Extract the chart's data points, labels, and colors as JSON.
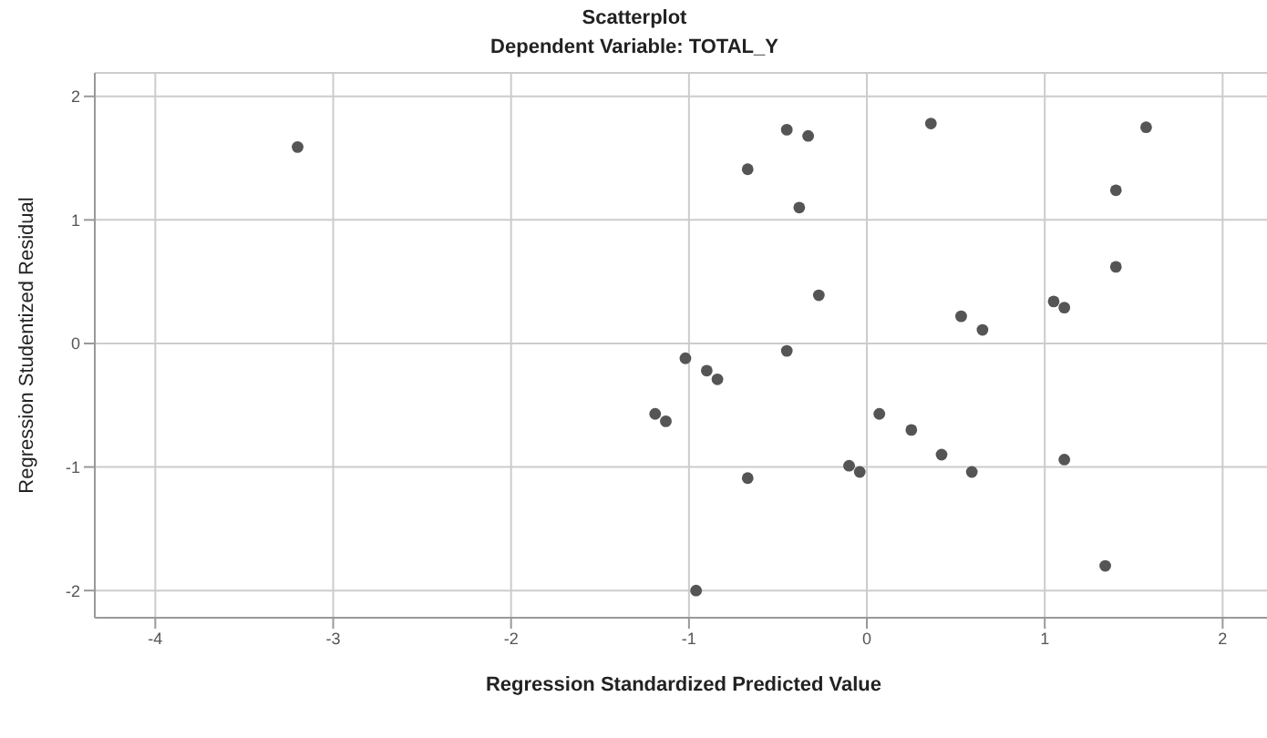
{
  "chart_data": {
    "type": "scatter",
    "title": "Scatterplot",
    "subtitle": "Dependent Variable: TOTAL_Y",
    "xlabel": "Regression Standardized Predicted Value",
    "ylabel": "Regression Studentized Residual",
    "x": [
      -3.2,
      -0.45,
      -0.33,
      0.36,
      1.57,
      -0.67,
      1.4,
      -0.38,
      1.4,
      -0.27,
      0.53,
      0.65,
      1.05,
      1.11,
      -0.45,
      -1.02,
      -0.9,
      -0.84,
      -1.19,
      -1.13,
      0.07,
      0.25,
      0.42,
      1.11,
      -0.1,
      -0.04,
      0.59,
      -0.67,
      1.34,
      -0.96
    ],
    "values": [
      1.59,
      1.73,
      1.68,
      1.78,
      1.75,
      1.41,
      1.24,
      1.1,
      0.62,
      0.39,
      0.22,
      0.11,
      0.34,
      0.29,
      -0.06,
      -0.12,
      -0.22,
      -0.29,
      -0.57,
      -0.63,
      -0.57,
      -0.7,
      -0.9,
      -0.94,
      -0.99,
      -1.04,
      -1.04,
      -1.09,
      -1.8,
      -2.0
    ],
    "color": "#555555",
    "marker": "circle",
    "grid": true,
    "xlim": [
      -4.34,
      2.28
    ],
    "xticks": [
      -4,
      -3,
      -2,
      -1,
      0,
      1,
      2
    ],
    "ylim": [
      -2.22,
      2.19
    ],
    "yticks": [
      -2,
      -1,
      0,
      1,
      2
    ]
  }
}
